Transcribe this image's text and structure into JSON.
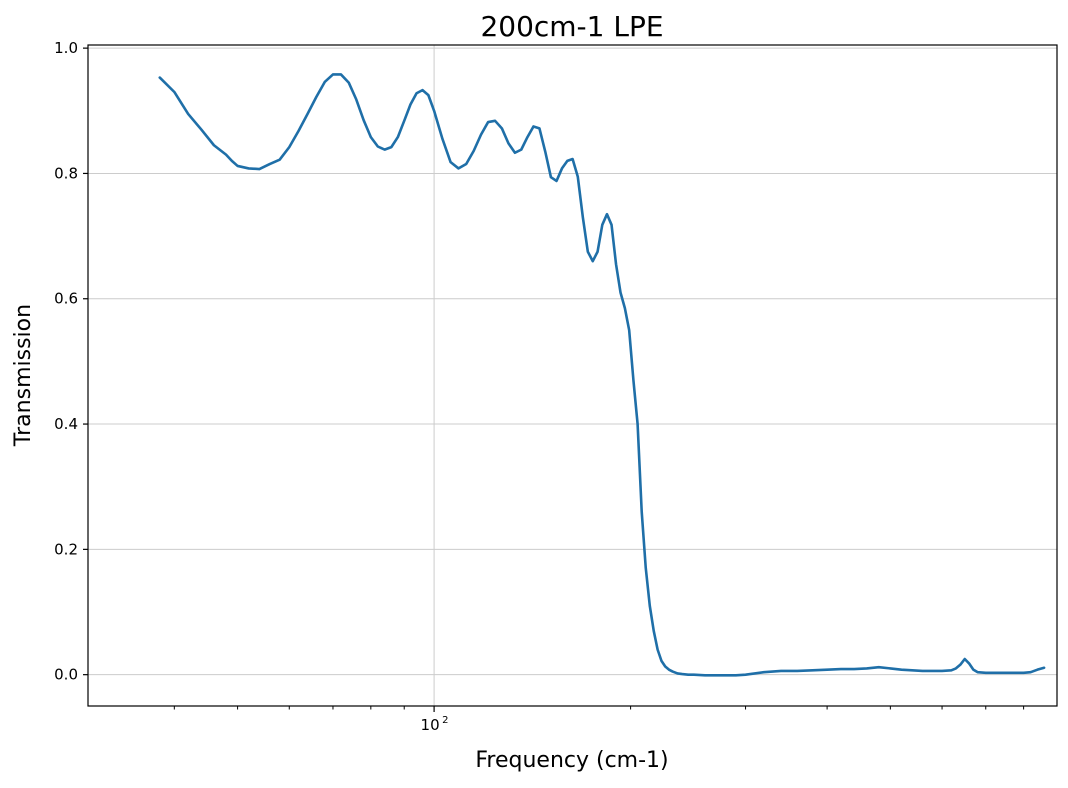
{
  "chart_data": {
    "type": "line",
    "title": "200cm-1 LPE",
    "xlabel": "Frequency (cm-1)",
    "ylabel": "Transmission",
    "xscale": "log",
    "xlim": [
      29.5,
      900
    ],
    "ylim": [
      -0.05,
      1.005
    ],
    "grid": true,
    "colors": {
      "line": "#1f6fa8",
      "grid": "#cccccc",
      "axis": "#000000"
    },
    "xticks": [
      {
        "value": 100,
        "base": "10",
        "exp": "2"
      }
    ],
    "xminor_ticks": [
      40,
      50,
      60,
      70,
      80,
      90,
      200,
      300,
      400,
      500,
      600,
      700,
      800
    ],
    "yticks": [
      {
        "value": 0.0,
        "label": "0.0"
      },
      {
        "value": 0.2,
        "label": "0.2"
      },
      {
        "value": 0.4,
        "label": "0.4"
      },
      {
        "value": 0.6,
        "label": "0.6"
      },
      {
        "value": 0.8,
        "label": "0.8"
      },
      {
        "value": 1.0,
        "label": "1.0"
      }
    ],
    "series": [
      {
        "x": [
          38,
          40,
          42,
          44,
          46,
          48,
          49,
          50,
          52,
          54,
          56,
          58,
          60,
          62,
          64,
          66,
          68,
          70,
          72,
          74,
          76,
          78,
          80,
          82,
          84,
          86,
          88,
          90,
          92,
          94,
          96,
          98,
          100,
          103,
          106,
          109,
          112,
          115,
          118,
          121,
          124,
          127,
          130,
          133,
          136,
          139,
          142,
          145,
          148,
          151,
          154,
          157,
          160,
          163,
          166,
          169,
          172,
          175,
          178,
          181,
          184,
          187,
          190,
          193,
          196,
          199,
          202,
          205,
          208,
          211,
          214,
          217,
          220,
          223,
          226,
          229,
          232,
          236,
          240,
          245,
          250,
          260,
          270,
          280,
          290,
          300,
          320,
          340,
          360,
          380,
          400,
          420,
          440,
          460,
          480,
          500,
          520,
          540,
          560,
          580,
          600,
          620,
          630,
          640,
          650,
          660,
          670,
          680,
          700,
          720,
          740,
          760,
          780,
          800,
          820,
          840,
          860
        ],
        "y": [
          0.953,
          0.93,
          0.895,
          0.87,
          0.845,
          0.83,
          0.82,
          0.812,
          0.808,
          0.807,
          0.815,
          0.822,
          0.842,
          0.868,
          0.895,
          0.922,
          0.946,
          0.958,
          0.958,
          0.945,
          0.918,
          0.885,
          0.858,
          0.843,
          0.838,
          0.842,
          0.858,
          0.884,
          0.91,
          0.928,
          0.933,
          0.925,
          0.9,
          0.855,
          0.818,
          0.808,
          0.815,
          0.836,
          0.862,
          0.882,
          0.884,
          0.872,
          0.848,
          0.833,
          0.838,
          0.858,
          0.875,
          0.872,
          0.835,
          0.794,
          0.788,
          0.808,
          0.82,
          0.823,
          0.795,
          0.73,
          0.675,
          0.66,
          0.675,
          0.718,
          0.735,
          0.718,
          0.655,
          0.61,
          0.585,
          0.55,
          0.47,
          0.4,
          0.26,
          0.17,
          0.11,
          0.07,
          0.04,
          0.022,
          0.013,
          0.008,
          0.005,
          0.002,
          0.001,
          0.0,
          0.0,
          -0.001,
          -0.001,
          -0.001,
          -0.001,
          0.0,
          0.004,
          0.006,
          0.006,
          0.007,
          0.008,
          0.009,
          0.009,
          0.01,
          0.012,
          0.01,
          0.008,
          0.007,
          0.006,
          0.006,
          0.006,
          0.007,
          0.01,
          0.016,
          0.025,
          0.018,
          0.008,
          0.004,
          0.003,
          0.003,
          0.003,
          0.003,
          0.003,
          0.003,
          0.004,
          0.008,
          0.011
        ]
      }
    ]
  }
}
